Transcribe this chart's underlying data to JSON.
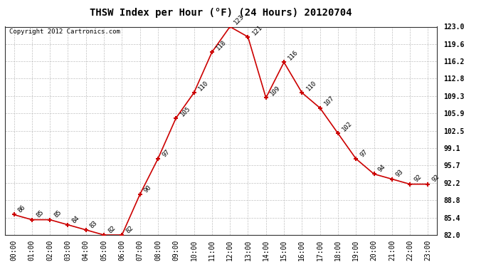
{
  "title": "THSW Index per Hour (°F) (24 Hours) 20120704",
  "copyright": "Copyright 2012 Cartronics.com",
  "hours": [
    0,
    1,
    2,
    3,
    4,
    5,
    6,
    7,
    8,
    9,
    10,
    11,
    12,
    13,
    14,
    15,
    16,
    17,
    18,
    19,
    20,
    21,
    22,
    23
  ],
  "values": [
    86,
    85,
    85,
    84,
    83,
    82,
    82,
    90,
    97,
    105,
    110,
    118,
    123,
    121,
    109,
    116,
    110,
    107,
    102,
    97,
    94,
    93,
    92,
    92
  ],
  "xlabels": [
    "00:00",
    "01:00",
    "02:00",
    "03:00",
    "04:00",
    "05:00",
    "06:00",
    "07:00",
    "08:00",
    "09:00",
    "10:00",
    "11:00",
    "12:00",
    "13:00",
    "14:00",
    "15:00",
    "16:00",
    "17:00",
    "18:00",
    "19:00",
    "20:00",
    "21:00",
    "22:00",
    "23:00"
  ],
  "ylim": [
    82.0,
    123.0
  ],
  "yticks": [
    82.0,
    85.4,
    88.8,
    92.2,
    95.7,
    99.1,
    102.5,
    105.9,
    109.3,
    112.8,
    116.2,
    119.6,
    123.0
  ],
  "ytick_labels": [
    "82.0",
    "85.4",
    "88.8",
    "92.2",
    "95.7",
    "99.1",
    "102.5",
    "105.9",
    "109.3",
    "112.8",
    "116.2",
    "119.6",
    "123.0"
  ],
  "line_color": "#cc0000",
  "marker_color": "#cc0000",
  "bg_color": "#ffffff",
  "plot_bg_color": "#ffffff",
  "grid_color": "#bbbbbb",
  "title_fontsize": 10,
  "label_fontsize": 7,
  "annot_fontsize": 6.5,
  "copyright_fontsize": 6.5
}
